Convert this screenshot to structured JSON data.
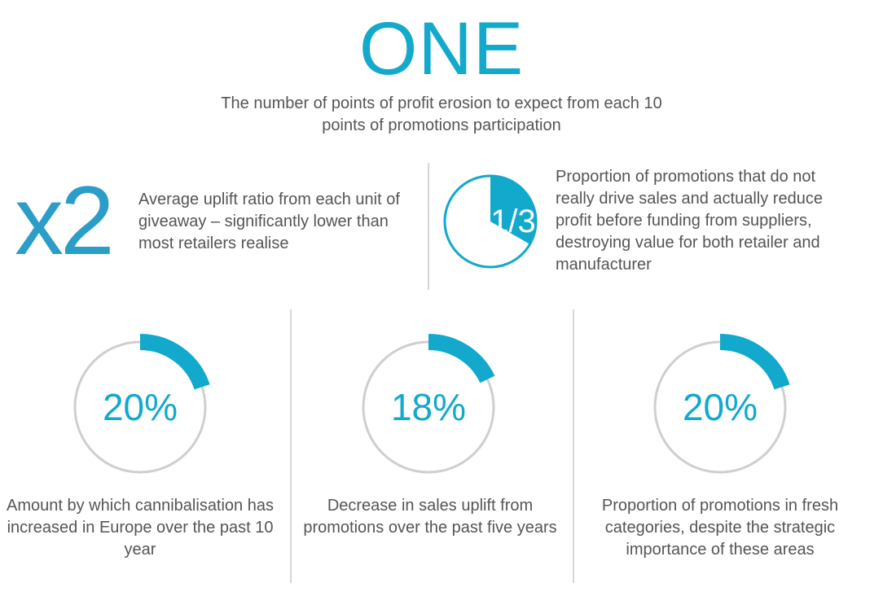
{
  "header": {
    "headline": "ONE",
    "subtitle": "The number of points of profit erosion to expect from each 10 points of promotions participation"
  },
  "uplift": {
    "value": "x2",
    "description": "Average uplift ratio from each unit of giveaway – significantly lower than most retailers realise"
  },
  "proportion": {
    "label": "1/3",
    "fraction": 0.3333,
    "description": "Proportion of promotions that do not really drive sales and actually reduce profit before funding from suppliers, destroying value for both retailer and manufacturer"
  },
  "stats": [
    {
      "label": "20%",
      "value": 20,
      "description": "Amount by which cannibalisation has increased in Europe over the past 10 year"
    },
    {
      "label": "18%",
      "value": 18,
      "description": "Decrease in sales uplift from promotions over the past five years"
    },
    {
      "label": "20%",
      "value": 20,
      "description": "Proportion of promotions in fresh categories, despite the strategic importance of these areas"
    }
  ],
  "colors": {
    "accent": "#12a9cc",
    "x2": "#2b9dc9",
    "ring": "#cfcfcf",
    "text": "#555555",
    "divider": "#d6d6d6"
  },
  "chart_data": [
    {
      "type": "pie",
      "categories": [
        "1/3",
        "remainder"
      ],
      "values": [
        33.3,
        66.7
      ]
    },
    {
      "type": "pie",
      "categories": [
        "20%",
        "remainder"
      ],
      "values": [
        20,
        80
      ]
    },
    {
      "type": "pie",
      "categories": [
        "18%",
        "remainder"
      ],
      "values": [
        18,
        82
      ]
    },
    {
      "type": "pie",
      "categories": [
        "20%",
        "remainder"
      ],
      "values": [
        20,
        80
      ]
    }
  ]
}
